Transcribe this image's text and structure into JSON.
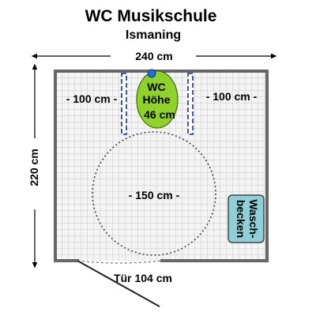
{
  "title": "WC Musikschule",
  "subtitle": "Ismaning",
  "dimensions": {
    "width_label": "240 cm",
    "height_label": "220 cm",
    "left_clearance_label": "- 100 cm -",
    "right_clearance_label": "- 100 cm -",
    "turning_circle_label": "- 150 cm -",
    "door_label": "Tür 104 cm"
  },
  "toilet": {
    "line1": "WC",
    "line2": "Höhe",
    "line3": "46 cm",
    "color": "#8fd22a"
  },
  "sink": {
    "line1": "Wasch-",
    "line2": "becken",
    "color": "#8fd0d8"
  },
  "colors": {
    "grab_bar": "#1a2a9c",
    "flush_button": "#1f6fd6",
    "wall": "#666666",
    "grid": "#cfcfcf"
  }
}
